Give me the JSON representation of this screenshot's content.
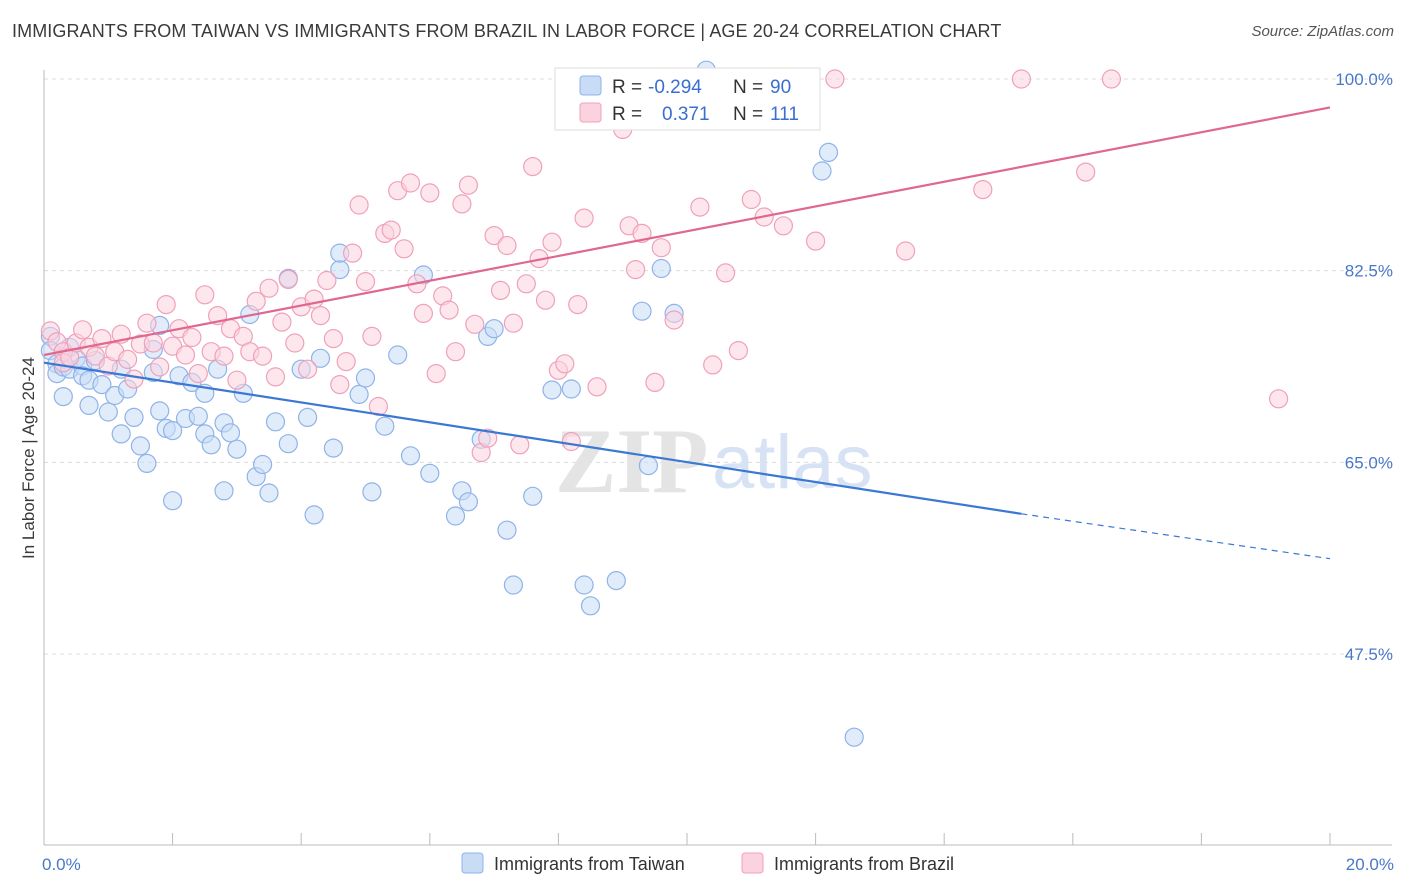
{
  "title": "IMMIGRANTS FROM TAIWAN VS IMMIGRANTS FROM BRAZIL IN LABOR FORCE | AGE 20-24 CORRELATION CHART",
  "source": "Source: ZipAtlas.com",
  "legend_top": {
    "rows": [
      {
        "r_label": "R =",
        "r_value": "-0.294",
        "n_label": "N =",
        "n_value": "90",
        "color": "#8fb3e8",
        "fill": "#c9dcf6"
      },
      {
        "r_label": "R =",
        "r_value": "0.371",
        "n_label": "N =",
        "n_value": "111",
        "color": "#f0a0bb",
        "fill": "#fbd3df"
      }
    ]
  },
  "legend_bottom": {
    "items": [
      {
        "label": "Immigrants from Taiwan",
        "fill": "#c9dcf6",
        "stroke": "#8fb3e8"
      },
      {
        "label": "Immigrants from Brazil",
        "fill": "#fbd3df",
        "stroke": "#f0a0bb"
      }
    ]
  },
  "watermark": {
    "zip": "ZIP",
    "atlas": "atlas"
  },
  "chart_data": {
    "type": "scatter",
    "ylabel": "In Labor Force | Age 20-24",
    "xlabel": "",
    "xlim": [
      0,
      20
    ],
    "ylim": [
      30,
      103
    ],
    "x_tick_labels": [
      {
        "value": 0,
        "label": "0.0%"
      },
      {
        "value": 20,
        "label": "20.0%"
      }
    ],
    "y_tick_labels": [
      {
        "value": 100,
        "label": "100.0%"
      },
      {
        "value": 82.5,
        "label": "82.5%"
      },
      {
        "value": 65,
        "label": "65.0%"
      },
      {
        "value": 47.5,
        "label": "47.5%"
      }
    ],
    "grid": true,
    "series": [
      {
        "name": "Immigrants from Taiwan",
        "color": "#3a78d4",
        "marker_fill": "#c9dcf6",
        "marker_stroke": "#8fb3e8",
        "trend": {
          "x0": 0,
          "y0": 74.1,
          "x1": 15.2,
          "y1": 60.3,
          "dash_to_x": 20,
          "dash_to_y": 56.2
        },
        "points": [
          [
            0.1,
            76.5
          ],
          [
            0.1,
            75.2
          ],
          [
            0.2,
            74.0
          ],
          [
            0.2,
            73.1
          ],
          [
            0.3,
            71.0
          ],
          [
            0.3,
            73.7
          ],
          [
            0.4,
            75.5
          ],
          [
            0.4,
            73.5
          ],
          [
            0.5,
            74.5
          ],
          [
            0.6,
            73.8
          ],
          [
            0.6,
            72.9
          ],
          [
            0.7,
            72.5
          ],
          [
            0.7,
            70.2
          ],
          [
            0.8,
            74.3
          ],
          [
            0.9,
            72.1
          ],
          [
            1.0,
            69.6
          ],
          [
            1.1,
            71.1
          ],
          [
            1.2,
            67.6
          ],
          [
            1.2,
            73.5
          ],
          [
            1.3,
            71.7
          ],
          [
            1.4,
            69.1
          ],
          [
            1.5,
            66.5
          ],
          [
            1.6,
            64.9
          ],
          [
            1.7,
            73.2
          ],
          [
            1.7,
            75.3
          ],
          [
            1.8,
            69.7
          ],
          [
            1.8,
            77.5
          ],
          [
            1.9,
            68.1
          ],
          [
            2.0,
            61.5
          ],
          [
            2.0,
            67.9
          ],
          [
            2.1,
            72.9
          ],
          [
            2.2,
            69.0
          ],
          [
            2.3,
            72.3
          ],
          [
            2.4,
            69.2
          ],
          [
            2.5,
            67.6
          ],
          [
            2.5,
            71.3
          ],
          [
            2.6,
            66.6
          ],
          [
            2.7,
            73.5
          ],
          [
            2.8,
            68.6
          ],
          [
            2.8,
            62.4
          ],
          [
            2.9,
            67.7
          ],
          [
            3.0,
            66.2
          ],
          [
            3.1,
            71.3
          ],
          [
            3.2,
            78.5
          ],
          [
            3.3,
            63.7
          ],
          [
            3.4,
            64.8
          ],
          [
            3.5,
            62.2
          ],
          [
            3.6,
            68.7
          ],
          [
            3.8,
            66.7
          ],
          [
            3.8,
            81.8
          ],
          [
            4.0,
            73.5
          ],
          [
            4.1,
            69.1
          ],
          [
            4.2,
            60.2
          ],
          [
            4.3,
            74.5
          ],
          [
            4.5,
            66.3
          ],
          [
            4.6,
            82.6
          ],
          [
            4.6,
            84.1
          ],
          [
            4.9,
            71.2
          ],
          [
            5.0,
            72.7
          ],
          [
            5.1,
            62.3
          ],
          [
            5.3,
            68.3
          ],
          [
            5.5,
            74.8
          ],
          [
            5.7,
            65.6
          ],
          [
            5.9,
            82.1
          ],
          [
            6.0,
            64.0
          ],
          [
            6.4,
            60.1
          ],
          [
            6.5,
            62.4
          ],
          [
            6.6,
            61.4
          ],
          [
            6.8,
            67.1
          ],
          [
            6.9,
            76.5
          ],
          [
            7.0,
            77.2
          ],
          [
            7.2,
            58.8
          ],
          [
            7.3,
            53.8
          ],
          [
            7.6,
            61.9
          ],
          [
            7.9,
            71.6
          ],
          [
            8.2,
            71.7
          ],
          [
            8.4,
            53.8
          ],
          [
            8.5,
            51.9
          ],
          [
            8.9,
            54.2
          ],
          [
            9.3,
            78.8
          ],
          [
            9.4,
            64.7
          ],
          [
            9.6,
            82.7
          ],
          [
            9.8,
            78.6
          ],
          [
            10.0,
            97.6
          ],
          [
            10.3,
            100.8
          ],
          [
            10.7,
            100.0
          ],
          [
            11.6,
            96.8
          ],
          [
            12.1,
            91.6
          ],
          [
            12.2,
            93.3
          ],
          [
            12.6,
            39.9
          ]
        ]
      },
      {
        "name": "Immigrants from Brazil",
        "color": "#e0678f",
        "marker_fill": "#fbd3df",
        "marker_stroke": "#f0a0bb",
        "trend": {
          "x0": 0,
          "y0": 74.8,
          "x1": 20,
          "y1": 97.4
        },
        "points": [
          [
            0.1,
            77.0
          ],
          [
            0.2,
            76.0
          ],
          [
            0.3,
            75.1
          ],
          [
            0.3,
            74.1
          ],
          [
            0.4,
            74.6
          ],
          [
            0.5,
            75.9
          ],
          [
            0.6,
            77.1
          ],
          [
            0.7,
            75.5
          ],
          [
            0.8,
            74.7
          ],
          [
            0.9,
            76.3
          ],
          [
            1.0,
            73.8
          ],
          [
            1.1,
            75.1
          ],
          [
            1.2,
            76.7
          ],
          [
            1.3,
            74.4
          ],
          [
            1.4,
            72.6
          ],
          [
            1.5,
            75.8
          ],
          [
            1.6,
            77.7
          ],
          [
            1.7,
            75.9
          ],
          [
            1.8,
            73.7
          ],
          [
            1.9,
            79.4
          ],
          [
            2.0,
            75.6
          ],
          [
            2.1,
            77.2
          ],
          [
            2.2,
            74.8
          ],
          [
            2.3,
            76.4
          ],
          [
            2.4,
            73.1
          ],
          [
            2.5,
            80.3
          ],
          [
            2.6,
            75.1
          ],
          [
            2.7,
            78.4
          ],
          [
            2.8,
            74.7
          ],
          [
            2.9,
            77.2
          ],
          [
            3.0,
            72.5
          ],
          [
            3.1,
            76.5
          ],
          [
            3.2,
            75.1
          ],
          [
            3.3,
            79.7
          ],
          [
            3.4,
            74.7
          ],
          [
            3.5,
            80.9
          ],
          [
            3.6,
            72.8
          ],
          [
            3.7,
            77.8
          ],
          [
            3.8,
            81.7
          ],
          [
            3.9,
            75.9
          ],
          [
            4.0,
            79.2
          ],
          [
            4.1,
            73.5
          ],
          [
            4.2,
            79.9
          ],
          [
            4.3,
            78.4
          ],
          [
            4.4,
            81.6
          ],
          [
            4.5,
            76.3
          ],
          [
            4.6,
            72.1
          ],
          [
            4.7,
            74.2
          ],
          [
            4.8,
            84.1
          ],
          [
            4.9,
            88.5
          ],
          [
            5.0,
            81.5
          ],
          [
            5.1,
            76.5
          ],
          [
            5.2,
            70.1
          ],
          [
            5.3,
            85.9
          ],
          [
            5.4,
            86.2
          ],
          [
            5.5,
            89.8
          ],
          [
            5.6,
            84.5
          ],
          [
            5.7,
            90.5
          ],
          [
            5.8,
            81.3
          ],
          [
            5.9,
            78.6
          ],
          [
            6.0,
            89.6
          ],
          [
            6.1,
            73.1
          ],
          [
            6.2,
            80.2
          ],
          [
            6.3,
            78.9
          ],
          [
            6.4,
            75.1
          ],
          [
            6.5,
            88.6
          ],
          [
            6.6,
            90.3
          ],
          [
            6.7,
            77.6
          ],
          [
            6.8,
            65.9
          ],
          [
            6.9,
            67.2
          ],
          [
            7.0,
            85.7
          ],
          [
            7.1,
            80.7
          ],
          [
            7.2,
            84.8
          ],
          [
            7.3,
            77.7
          ],
          [
            7.4,
            66.6
          ],
          [
            7.5,
            81.3
          ],
          [
            7.6,
            92.0
          ],
          [
            7.7,
            83.6
          ],
          [
            7.8,
            79.8
          ],
          [
            7.9,
            85.1
          ],
          [
            8.0,
            73.4
          ],
          [
            8.1,
            74.0
          ],
          [
            8.2,
            66.9
          ],
          [
            8.3,
            79.4
          ],
          [
            8.4,
            87.3
          ],
          [
            8.6,
            71.9
          ],
          [
            8.7,
            100.0
          ],
          [
            8.8,
            100.0
          ],
          [
            8.9,
            96.8
          ],
          [
            9.0,
            95.4
          ],
          [
            9.1,
            86.6
          ],
          [
            9.2,
            82.6
          ],
          [
            9.3,
            85.9
          ],
          [
            9.5,
            72.3
          ],
          [
            9.6,
            84.6
          ],
          [
            9.8,
            78.0
          ],
          [
            10.2,
            88.3
          ],
          [
            10.4,
            73.9
          ],
          [
            10.6,
            82.3
          ],
          [
            10.8,
            75.2
          ],
          [
            11.0,
            89.0
          ],
          [
            11.2,
            87.4
          ],
          [
            11.5,
            86.6
          ],
          [
            12.0,
            85.2
          ],
          [
            12.3,
            100.0
          ],
          [
            13.4,
            84.3
          ],
          [
            14.6,
            89.9
          ],
          [
            15.2,
            100.0
          ],
          [
            16.2,
            91.5
          ],
          [
            16.6,
            100.0
          ],
          [
            19.2,
            70.8
          ]
        ]
      }
    ]
  }
}
